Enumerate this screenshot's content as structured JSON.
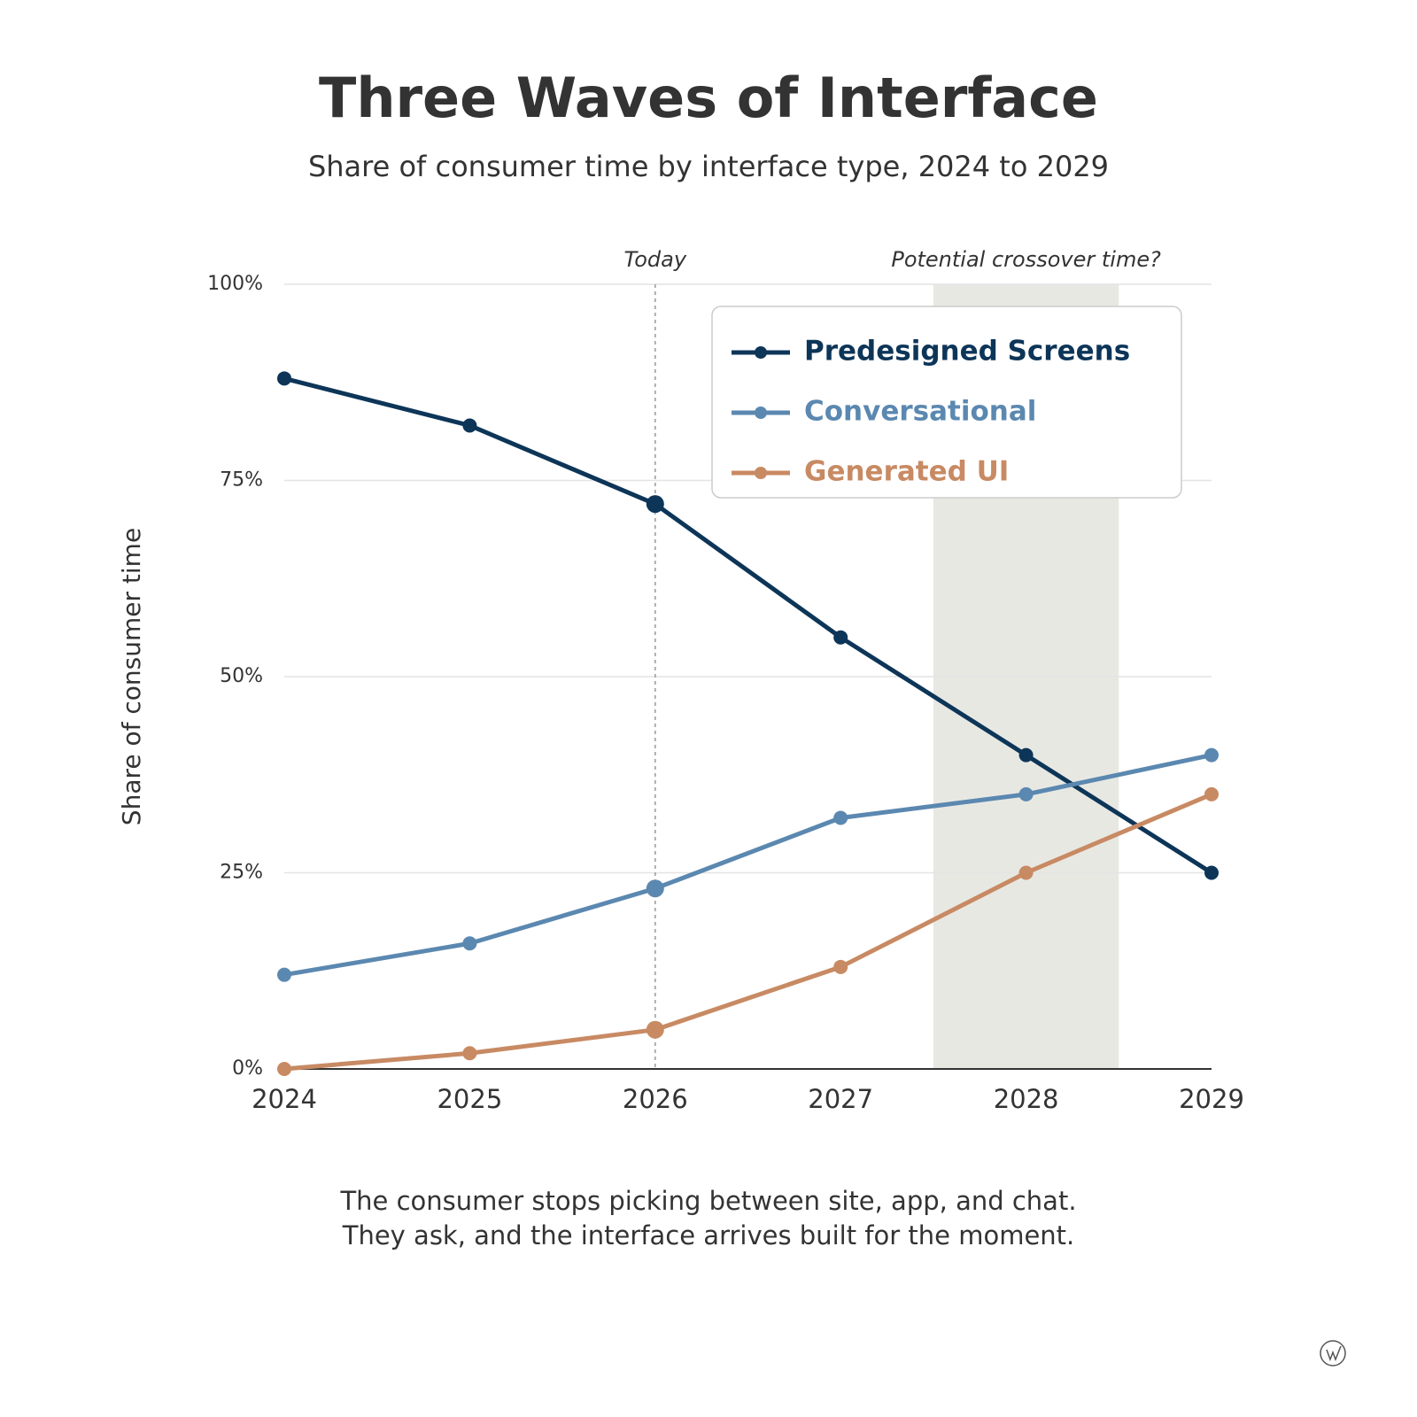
{
  "chart_data": {
    "type": "line",
    "title": "Three Waves of Interface",
    "subtitle": "Share of consumer time by interface type, 2024 to 2029",
    "y_label": "Share of consumer time",
    "x": [
      2024,
      2025,
      2026,
      2027,
      2028,
      2029
    ],
    "xlim": [
      2024,
      2029
    ],
    "xticks": [
      2024,
      2025,
      2026,
      2027,
      2028,
      2029
    ],
    "ylim": [
      0,
      100
    ],
    "yticks": [
      {
        "value": 0,
        "label": "0%"
      },
      {
        "value": 25,
        "label": "25%"
      },
      {
        "value": 50,
        "label": "50%"
      },
      {
        "value": 75,
        "label": "75%"
      },
      {
        "value": 100,
        "label": "100%"
      }
    ],
    "grid": true,
    "legend": "upper right",
    "series": [
      {
        "name": "Predesigned Screens",
        "color": "#0d3558",
        "values": [
          88,
          82,
          72,
          55,
          40,
          25
        ]
      },
      {
        "name": "Conversational",
        "color": "#5b88b0",
        "values": [
          12,
          16,
          23,
          32,
          35,
          40
        ]
      },
      {
        "name": "Generated UI",
        "color": "#c88a63",
        "values": [
          0,
          2,
          5,
          13,
          25,
          35
        ]
      }
    ],
    "marker_line": {
      "label": "Today",
      "x": 2026
    },
    "shaded_region": {
      "label": "Potential crossover time?",
      "x": [
        2027.5,
        2028.5
      ]
    },
    "caption": [
      "The consumer stops picking between site, app, and chat.",
      "They ask, and the interface arrives built for the moment."
    ]
  }
}
